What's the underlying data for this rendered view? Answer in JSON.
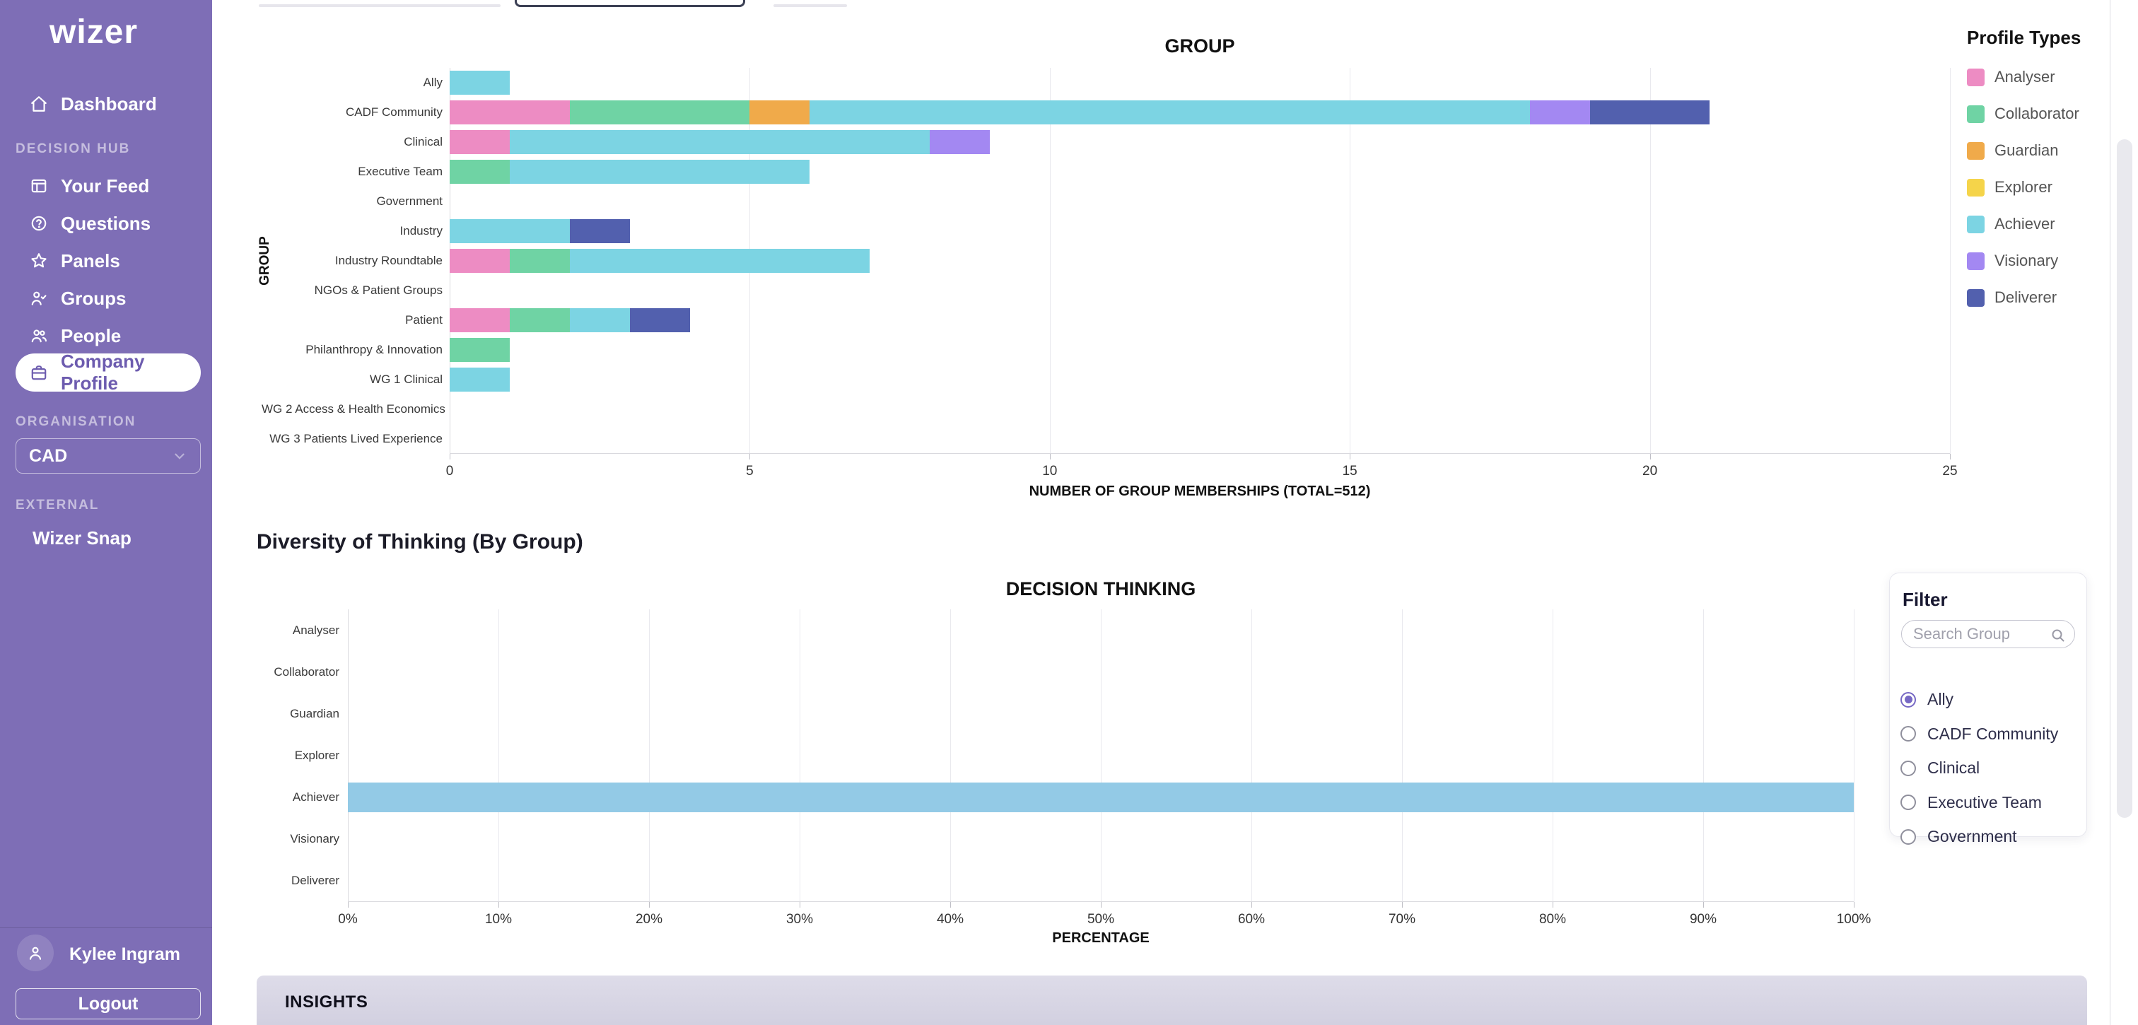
{
  "sidebar": {
    "logo": "wizer",
    "nav": [
      {
        "label": "Dashboard"
      },
      {
        "label": "Your Feed"
      },
      {
        "label": "Questions"
      },
      {
        "label": "Panels"
      },
      {
        "label": "Groups"
      },
      {
        "label": "People"
      },
      {
        "label": "Company Profile"
      }
    ],
    "section_decision_hub": "DECISION HUB",
    "section_organisation": "ORGANISATION",
    "section_external": "EXTERNAL",
    "org_select_value": "CAD",
    "external_item": "Wizer Snap",
    "user_name": "Kylee Ingram",
    "logout_label": "Logout"
  },
  "chart_data": [
    {
      "type": "bar",
      "orientation": "horizontal",
      "stacked": true,
      "title": "GROUP",
      "xlabel": "NUMBER OF GROUP MEMBERSHIPS (TOTAL=512)",
      "ylabel": "GROUP",
      "xlim": [
        0,
        25
      ],
      "xticks": [
        0,
        5,
        10,
        15,
        20,
        25
      ],
      "grid": true,
      "legend_title": "Profile Types",
      "legend_position": "right",
      "categories": [
        "Ally",
        "CADF Community",
        "Clinical",
        "Executive Team",
        "Government",
        "Industry",
        "Industry Roundtable",
        "NGOs & Patient Groups",
        "Patient",
        "Philanthropy & Innovation",
        "WG 1 Clinical",
        "WG 2 Access & Health Economics",
        "WG 3 Patients Lived Experience"
      ],
      "series": [
        {
          "name": "Analyser",
          "color": "#ed8cc3",
          "values": [
            0,
            2,
            1,
            0,
            0,
            0,
            1,
            0,
            1,
            0,
            0,
            0,
            0
          ]
        },
        {
          "name": "Collaborator",
          "color": "#6fd3a4",
          "values": [
            0,
            3,
            0,
            1,
            0,
            0,
            1,
            0,
            1,
            1,
            0,
            0,
            0
          ]
        },
        {
          "name": "Guardian",
          "color": "#f0aa4a",
          "values": [
            0,
            1,
            0,
            0,
            0,
            0,
            0,
            0,
            0,
            0,
            0,
            0,
            0
          ]
        },
        {
          "name": "Explorer",
          "color": "#f5d44a",
          "values": [
            0,
            0,
            0,
            0,
            0,
            0,
            0,
            0,
            0,
            0,
            0,
            0,
            0
          ]
        },
        {
          "name": "Achiever",
          "color": "#7cd4e3",
          "values": [
            1,
            12,
            7,
            5,
            0,
            2,
            5,
            0,
            1,
            0,
            1,
            0,
            0
          ]
        },
        {
          "name": "Visionary",
          "color": "#a388f2",
          "values": [
            0,
            1,
            1,
            0,
            0,
            0,
            0,
            0,
            0,
            0,
            0,
            0,
            0
          ]
        },
        {
          "name": "Deliverer",
          "color": "#5260ae",
          "values": [
            0,
            2,
            0,
            0,
            0,
            1,
            0,
            0,
            1,
            0,
            0,
            0,
            0
          ]
        }
      ]
    },
    {
      "type": "bar",
      "orientation": "horizontal",
      "title": "DECISION THINKING",
      "xlabel": "PERCENTAGE",
      "xlim": [
        0,
        100
      ],
      "xtick_labels": [
        "0%",
        "10%",
        "20%",
        "30%",
        "40%",
        "50%",
        "60%",
        "70%",
        "80%",
        "90%",
        "100%"
      ],
      "grid": true,
      "categories": [
        "Analyser",
        "Collaborator",
        "Guardian",
        "Explorer",
        "Achiever",
        "Visionary",
        "Deliverer"
      ],
      "values": [
        0,
        0,
        0,
        0,
        100,
        0,
        0
      ],
      "bar_color": "#93cae6"
    }
  ],
  "section2_heading": "Diversity of Thinking (By Group)",
  "filter": {
    "title": "Filter",
    "search_placeholder": "Search Group",
    "options": [
      {
        "label": "Ally",
        "selected": true
      },
      {
        "label": "CADF Community",
        "selected": false
      },
      {
        "label": "Clinical",
        "selected": false
      },
      {
        "label": "Executive Team",
        "selected": false
      },
      {
        "label": "Government",
        "selected": false
      }
    ]
  },
  "insights": {
    "label": "INSIGHTS"
  },
  "colors": {
    "sidebar": "#7e6eb6",
    "sidebar_active_text": "#6d5caf",
    "accent_purple": "#7668c4",
    "chart2_bar": "#93cae6"
  }
}
